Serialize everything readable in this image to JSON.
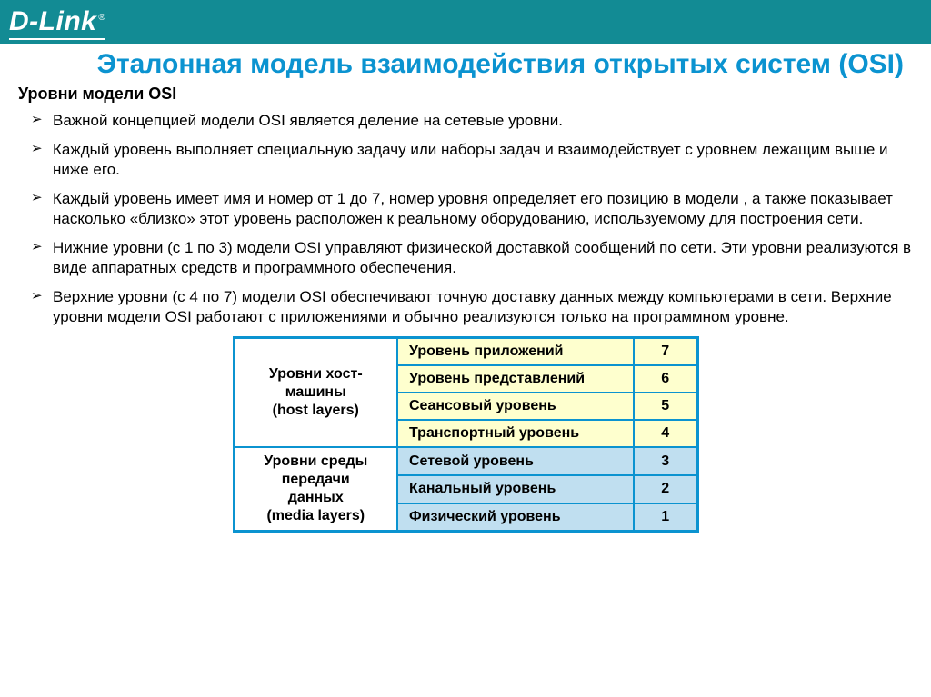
{
  "logo": {
    "text": "D-Link",
    "reg": "®"
  },
  "title": "Эталонная модель взаимодействия открытых систем (OSI)",
  "subtitle": "Уровни модели OSI",
  "bullets": [
    "Важной концепцией модели OSI является деление на сетевые уровни.",
    "Каждый уровень выполняет специальную задачу или наборы задач и взаимодействует с уровнем лежащим выше и ниже его.",
    "Каждый уровень имеет имя и номер от 1 до 7, номер уровня  определяет его позицию в модели , а также показывает насколько «близко» этот уровень расположен к реальному оборудованию, используемому для построения сети.",
    "Нижние уровни (с 1 по 3) модели OSI управляют физической доставкой сообщений по сети. Эти уровни реализуются в виде аппаратных средств и программного обеспечения.",
    "Верхние уровни (с 4 по 7) модели OSI обеспечивают точную доставку данных между компьютерами в сети. Верхние уровни модели OSI работают с приложениями и обычно реализуются только на программном уровне."
  ],
  "table": {
    "border_color": "#0b93d0",
    "group_host_lines": [
      "Уровни хост-",
      "машины",
      "(host layers)"
    ],
    "group_media_lines": [
      "Уровни среды",
      "передачи",
      "данных",
      "(media layers)"
    ],
    "rows": [
      {
        "name": "Уровень приложений",
        "num": "7",
        "bg": "bg-yellow"
      },
      {
        "name": "Уровень представлений",
        "num": "6",
        "bg": "bg-yellow"
      },
      {
        "name": "Сеансовый уровень",
        "num": "5",
        "bg": "bg-yellow"
      },
      {
        "name": "Транспортный уровень",
        "num": "4",
        "bg": "bg-yellow"
      },
      {
        "name": "Сетевой уровень",
        "num": "3",
        "bg": "bg-blue"
      },
      {
        "name": "Канальный уровень",
        "num": "2",
        "bg": "bg-blue"
      },
      {
        "name": "Физический уровень",
        "num": "1",
        "bg": "bg-blue"
      }
    ]
  },
  "colors": {
    "header_bg": "#128b94",
    "title": "#0b93d0",
    "row_yellow": "#feffce",
    "row_blue": "#c0dff0"
  }
}
